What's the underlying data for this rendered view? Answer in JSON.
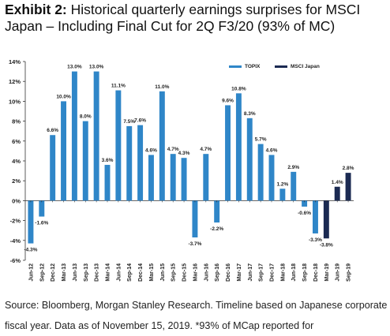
{
  "title": {
    "exhibit": "Exhibit 2:",
    "text": "Historical quarterly earnings surprises for MSCI Japan – Including Final Cut for 2Q F3/20 (93% of MC)"
  },
  "source_note": "Source: Bloomberg, Morgan Stanley Research. Timeline based on Japanese corporate fiscal year. Data as of November 15, 2019. *93% of MCap reported for",
  "colors": {
    "topix": "#2f86c8",
    "msci": "#1b2a52"
  },
  "chart_data": {
    "type": "bar",
    "title": "",
    "xlabel": "",
    "ylabel": "",
    "ylim": [
      -6,
      14
    ],
    "yticks": [
      -6,
      -4,
      -2,
      0,
      2,
      4,
      6,
      8,
      10,
      12,
      14
    ],
    "ytick_labels": [
      "-6%",
      "-4%",
      "-2%",
      "0%",
      "2%",
      "4%",
      "6%",
      "8%",
      "10%",
      "12%",
      "14%"
    ],
    "legend": {
      "position": "top-right",
      "entries": [
        "TOPIX",
        "MSCI Japan"
      ]
    },
    "grid": false,
    "categories": [
      "Jun-12",
      "Sep-12",
      "Dec-12",
      "Mar-13",
      "Jun-13",
      "Sep-13",
      "Dec-13",
      "Mar-14",
      "Jun-14",
      "Sep-14",
      "Dec-14",
      "Mar-15",
      "Jun-15",
      "Sep-15",
      "Dec-15",
      "Mar-16",
      "Jun-16",
      "Sep-16",
      "Dec-16",
      "Mar-17",
      "Jun-17",
      "Sep-17",
      "Dec-17",
      "Mar-18",
      "Jun-18",
      "Sep-18",
      "Dec-18",
      "Mar-19",
      "Jun-19",
      "Sep-19"
    ],
    "values": [
      -4.3,
      -1.6,
      6.6,
      10.0,
      13.0,
      8.0,
      13.0,
      3.6,
      11.1,
      7.5,
      7.6,
      4.6,
      11.0,
      4.7,
      4.3,
      -3.7,
      4.7,
      -2.2,
      9.6,
      10.8,
      8.3,
      5.7,
      4.6,
      1.2,
      2.9,
      -0.6,
      -3.3,
      -3.8,
      1.4,
      2.8
    ],
    "data_labels": [
      "-4.3%",
      "-1.6%",
      "6.6%",
      "10.0%",
      "13.0%",
      "8.0%",
      "13.0%",
      "3.6%",
      "11.1%",
      "7.5%",
      "7.6%",
      "4.6%",
      "11.0%",
      "4.7%",
      "4.3%",
      "-3.7%",
      "4.7%",
      "-2.2%",
      "9.6%",
      "10.8%",
      "8.3%",
      "5.7%",
      "4.6%",
      "1.2%",
      "2.9%",
      "-0.6%",
      "-3.3%",
      "-3.8%",
      "1.4%",
      "2.8%"
    ],
    "series_index": [
      0,
      0,
      0,
      0,
      0,
      0,
      0,
      0,
      0,
      0,
      0,
      0,
      0,
      0,
      0,
      0,
      0,
      0,
      0,
      0,
      0,
      0,
      0,
      0,
      0,
      0,
      0,
      1,
      1,
      1
    ]
  }
}
